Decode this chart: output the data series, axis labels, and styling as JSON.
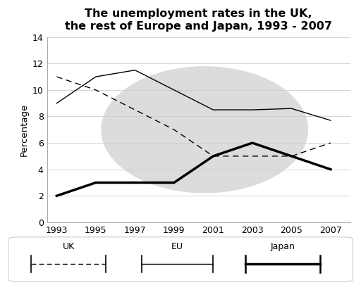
{
  "title": "The unemployment rates in the UK,\nthe rest of Europe and Japan, 1993 - 2007",
  "ylabel": "Percentage",
  "years": [
    1993,
    1995,
    1997,
    1999,
    2001,
    2003,
    2005,
    2007
  ],
  "uk": [
    11.0,
    10.0,
    8.5,
    7.0,
    5.0,
    5.0,
    5.0,
    6.0
  ],
  "eu": [
    9.0,
    11.0,
    11.5,
    10.0,
    8.5,
    8.5,
    8.6,
    7.7
  ],
  "japan": [
    2.0,
    3.0,
    3.0,
    3.0,
    5.0,
    6.0,
    5.0,
    4.0
  ],
  "ylim": [
    0,
    14
  ],
  "yticks": [
    0,
    2,
    4,
    6,
    8,
    10,
    12,
    14
  ],
  "background_color": "#ffffff",
  "watermark_color": "#dcdcdc"
}
